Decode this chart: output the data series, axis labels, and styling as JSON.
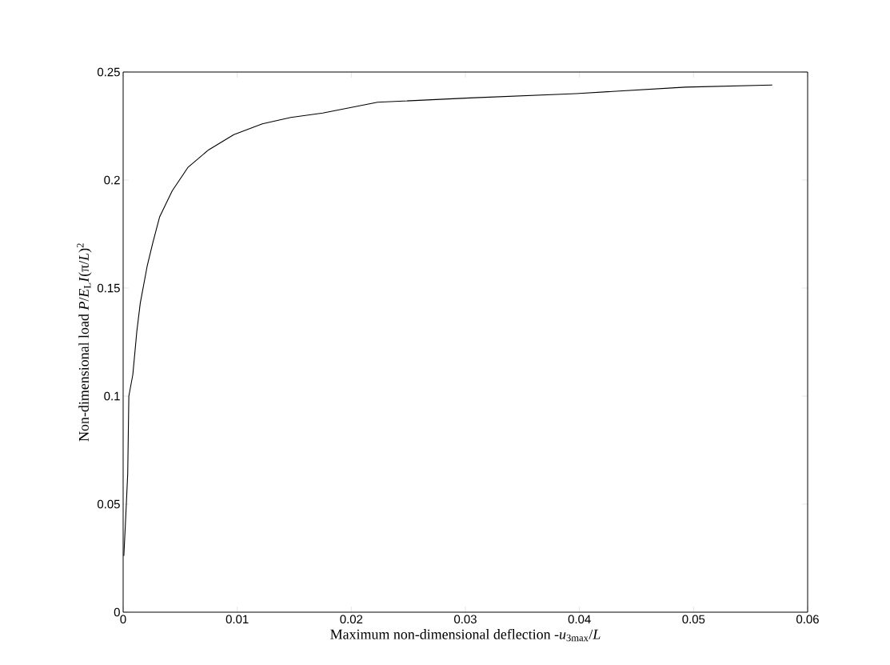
{
  "chart_data": {
    "type": "line",
    "xlabel": "Maximum non-dimensional deflection -*u*$_{3max}$/*L*",
    "ylabel": "Non-dimensional load *P*/*E*$_{L}$*I*(π/*L*)$^{2}$",
    "xlim": [
      0,
      0.06
    ],
    "ylim": [
      0,
      0.25
    ],
    "xticks": [
      0,
      0.01,
      0.02,
      0.03,
      0.04,
      0.05,
      0.06
    ],
    "yticks": [
      0,
      0.05,
      0.1,
      0.15,
      0.2,
      0.25
    ],
    "series": [
      {
        "color": "#000000",
        "x": [
          6e-05,
          0.0002,
          0.0004,
          0.0005,
          0.00085,
          0.0012,
          0.0015,
          0.0021,
          0.0026,
          0.0032,
          0.0043,
          0.0057,
          0.0075,
          0.0097,
          0.0122,
          0.0147,
          0.0175,
          0.0223,
          0.0304,
          0.0397,
          0.0493,
          0.0569
        ],
        "values": [
          0.026,
          0.041,
          0.064,
          0.1,
          0.11,
          0.13,
          0.143,
          0.16,
          0.171,
          0.183,
          0.195,
          0.206,
          0.214,
          0.221,
          0.226,
          0.229,
          0.231,
          0.236,
          0.238,
          0.24,
          0.243,
          0.244
        ]
      }
    ]
  }
}
